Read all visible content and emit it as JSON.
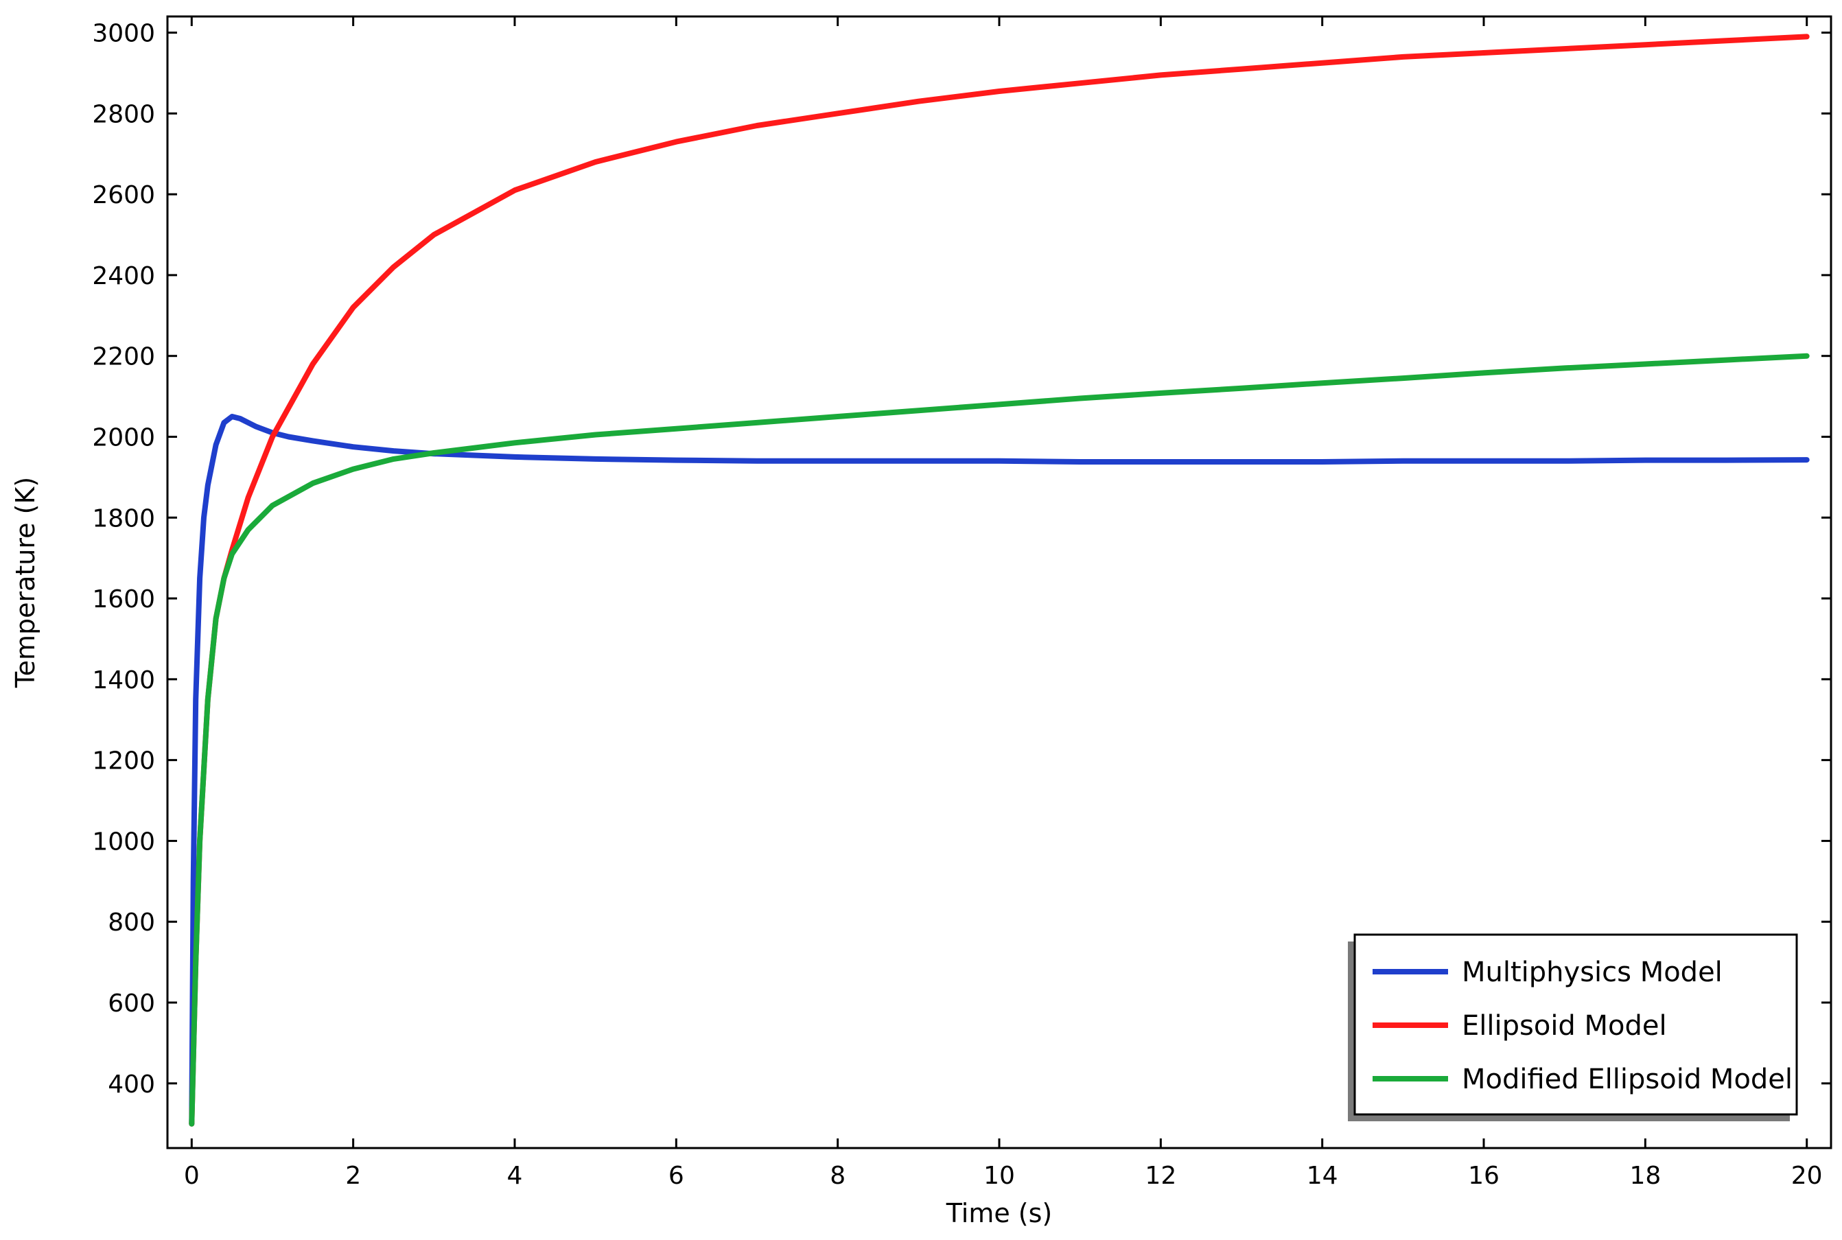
{
  "chart_data": {
    "type": "line",
    "title": "",
    "xlabel": "Time (s)",
    "ylabel": "Temperature (K)",
    "xlim": [
      -0.3,
      20.3
    ],
    "ylim": [
      240,
      3040
    ],
    "x_ticks": [
      0,
      2,
      4,
      6,
      8,
      10,
      12,
      14,
      16,
      18,
      20
    ],
    "y_ticks": [
      400,
      600,
      800,
      1000,
      1200,
      1400,
      1600,
      1800,
      2000,
      2200,
      2400,
      2600,
      2800,
      3000
    ],
    "grid": false,
    "legend_position": "bottom-right",
    "series": [
      {
        "name": "Multiphysics Model",
        "color": "#1f3fcc",
        "x": [
          0,
          0.02,
          0.05,
          0.1,
          0.15,
          0.2,
          0.3,
          0.4,
          0.5,
          0.6,
          0.7,
          0.8,
          1.0,
          1.2,
          1.5,
          2.0,
          2.5,
          3.0,
          4.0,
          5.0,
          6.0,
          7.0,
          8.0,
          9.0,
          10.0,
          11.0,
          12.0,
          13.0,
          14.0,
          15.0,
          16.0,
          17.0,
          18.0,
          19.0,
          20.0
        ],
        "y": [
          300,
          900,
          1350,
          1650,
          1800,
          1880,
          1980,
          2035,
          2050,
          2045,
          2035,
          2025,
          2010,
          2000,
          1990,
          1975,
          1965,
          1958,
          1950,
          1945,
          1942,
          1940,
          1940,
          1940,
          1940,
          1938,
          1938,
          1938,
          1938,
          1940,
          1940,
          1940,
          1942,
          1942,
          1943
        ]
      },
      {
        "name": "Ellipsoid Model",
        "color": "#ff1a1a",
        "x": [
          0,
          0.05,
          0.1,
          0.2,
          0.3,
          0.4,
          0.5,
          0.7,
          1.0,
          1.5,
          2.0,
          2.5,
          3.0,
          4.0,
          5.0,
          6.0,
          7.0,
          8.0,
          9.0,
          10.0,
          11.0,
          12.0,
          13.0,
          14.0,
          15.0,
          16.0,
          17.0,
          18.0,
          19.0,
          20.0
        ],
        "y": [
          300,
          700,
          1000,
          1350,
          1550,
          1650,
          1720,
          1850,
          2000,
          2180,
          2320,
          2420,
          2500,
          2610,
          2680,
          2730,
          2770,
          2800,
          2830,
          2855,
          2875,
          2895,
          2910,
          2925,
          2940,
          2950,
          2960,
          2970,
          2980,
          2990
        ]
      },
      {
        "name": "Modified Ellipsoid Model",
        "color": "#1aaa3a",
        "x": [
          0,
          0.05,
          0.1,
          0.2,
          0.3,
          0.4,
          0.5,
          0.7,
          1.0,
          1.5,
          2.0,
          2.5,
          3.0,
          4.0,
          5.0,
          6.0,
          7.0,
          8.0,
          9.0,
          10.0,
          11.0,
          12.0,
          13.0,
          14.0,
          15.0,
          16.0,
          17.0,
          18.0,
          19.0,
          20.0
        ],
        "y": [
          300,
          700,
          1000,
          1350,
          1550,
          1650,
          1710,
          1770,
          1830,
          1885,
          1920,
          1945,
          1960,
          1985,
          2005,
          2020,
          2035,
          2050,
          2065,
          2080,
          2095,
          2108,
          2120,
          2133,
          2145,
          2158,
          2170,
          2180,
          2190,
          2200
        ]
      }
    ]
  }
}
